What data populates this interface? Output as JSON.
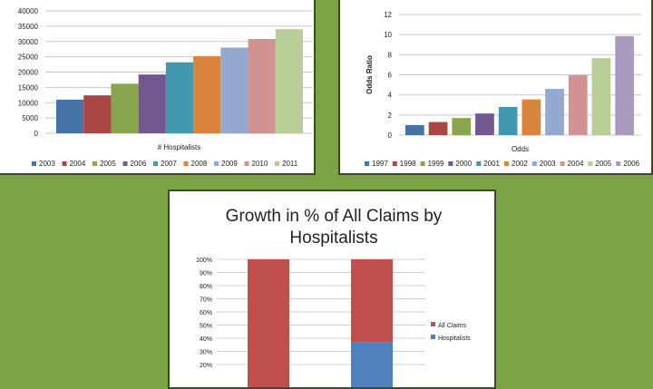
{
  "chart_data": [
    {
      "type": "bar",
      "title": "",
      "xlabel": "# Hospitalists",
      "ylabel": "",
      "ylim": [
        0,
        40000
      ],
      "yticks": [
        0,
        5000,
        10000,
        15000,
        20000,
        25000,
        30000,
        35000,
        40000
      ],
      "series": [
        {
          "name": "2003",
          "value": 11000,
          "color": "#4572a7"
        },
        {
          "name": "2004",
          "value": 12400,
          "color": "#aa4643"
        },
        {
          "name": "2005",
          "value": 16200,
          "color": "#89a54e"
        },
        {
          "name": "2006",
          "value": 19200,
          "color": "#71588f"
        },
        {
          "name": "2007",
          "value": 23200,
          "color": "#4198af"
        },
        {
          "name": "2008",
          "value": 25200,
          "color": "#db843d"
        },
        {
          "name": "2009",
          "value": 28000,
          "color": "#93a9cf"
        },
        {
          "name": "2010",
          "value": 30800,
          "color": "#d19392"
        },
        {
          "name": "2011",
          "value": 34000,
          "color": "#b9cd96"
        }
      ],
      "legend": "bottom"
    },
    {
      "type": "bar",
      "title": "",
      "xlabel": "Odds",
      "ylabel": "Odds Ratio",
      "ylim": [
        0,
        12
      ],
      "yticks": [
        0,
        2,
        4,
        6,
        8,
        10,
        12
      ],
      "series": [
        {
          "name": "1997",
          "value": 1.0,
          "color": "#4572a7"
        },
        {
          "name": "1998",
          "value": 1.3,
          "color": "#aa4643"
        },
        {
          "name": "1999",
          "value": 1.7,
          "color": "#89a54e"
        },
        {
          "name": "2000",
          "value": 2.15,
          "color": "#71588f"
        },
        {
          "name": "2001",
          "value": 2.8,
          "color": "#4198af"
        },
        {
          "name": "2002",
          "value": 3.55,
          "color": "#db843d"
        },
        {
          "name": "2003",
          "value": 4.6,
          "color": "#93a9cf"
        },
        {
          "name": "2004",
          "value": 5.95,
          "color": "#d19392"
        },
        {
          "name": "2005",
          "value": 7.65,
          "color": "#b9cd96"
        },
        {
          "name": "2006",
          "value": 9.85,
          "color": "#a99bbd"
        }
      ],
      "legend": "bottom"
    },
    {
      "type": "bar",
      "stacked": true,
      "title": [
        "Growth in % of All Claims by",
        "Hospitalists"
      ],
      "ylim": [
        0,
        100
      ],
      "yticks": [
        "20%",
        "30%",
        "40%",
        "50%",
        "60%",
        "70%",
        "80%",
        "90%",
        "100%"
      ],
      "categories": [
        "",
        ""
      ],
      "series": [
        {
          "name": "Hospitalists",
          "values": [
            0,
            37
          ],
          "color": "#4f81bd"
        },
        {
          "name": "All Claims",
          "values": [
            100,
            63
          ],
          "color": "#c0504d"
        }
      ],
      "legend": "right"
    }
  ]
}
